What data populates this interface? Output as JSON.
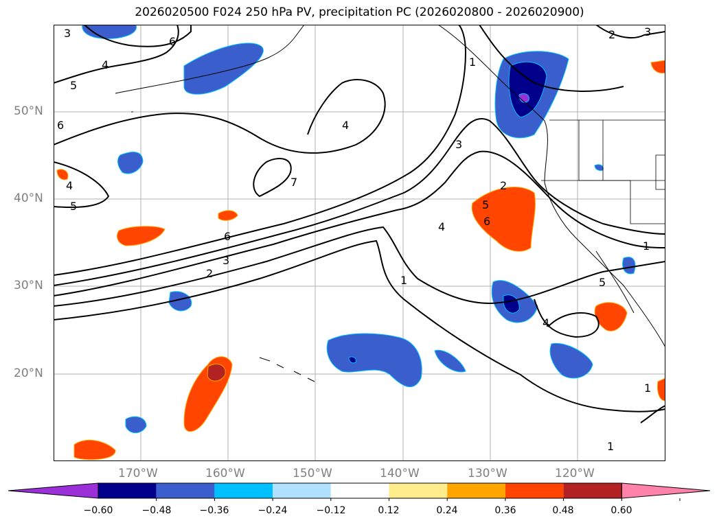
{
  "title": "2026020500 F024 250 hPa PV, precipitation PC (2026020800 - 2026020900)",
  "lat_labels": [
    "50°N",
    "40°N",
    "30°N",
    "20°N"
  ],
  "lon_labels": [
    "170°W",
    "160°W",
    "150°W",
    "140°W",
    "130°W",
    "120°W"
  ],
  "pv_contour_labels": [
    "3",
    "4",
    "5",
    "6",
    "6",
    "4",
    "5",
    "4",
    "7",
    "6",
    "3",
    "2",
    "1",
    "3",
    "4",
    "1",
    "2",
    "5",
    "6",
    "4",
    "1",
    "5",
    "2",
    "3",
    "1",
    "1"
  ],
  "colorbar": {
    "ticks": [
      "−0.60",
      "−0.48",
      "−0.36",
      "−0.24",
      "−0.12",
      "0.12",
      "0.24",
      "0.36",
      "0.48",
      "0.60"
    ],
    "colors": [
      "#9b30d9",
      "#00008b",
      "#3a5fcd",
      "#00bfff",
      "#b0e2ff",
      "#ffffff",
      "#ffec8b",
      "#ffa500",
      "#ff4500",
      "#b22222",
      "#ff82ab"
    ]
  },
  "colors": {
    "grid": "#b0b0b0",
    "axis_label": "#7f7f7f"
  }
}
